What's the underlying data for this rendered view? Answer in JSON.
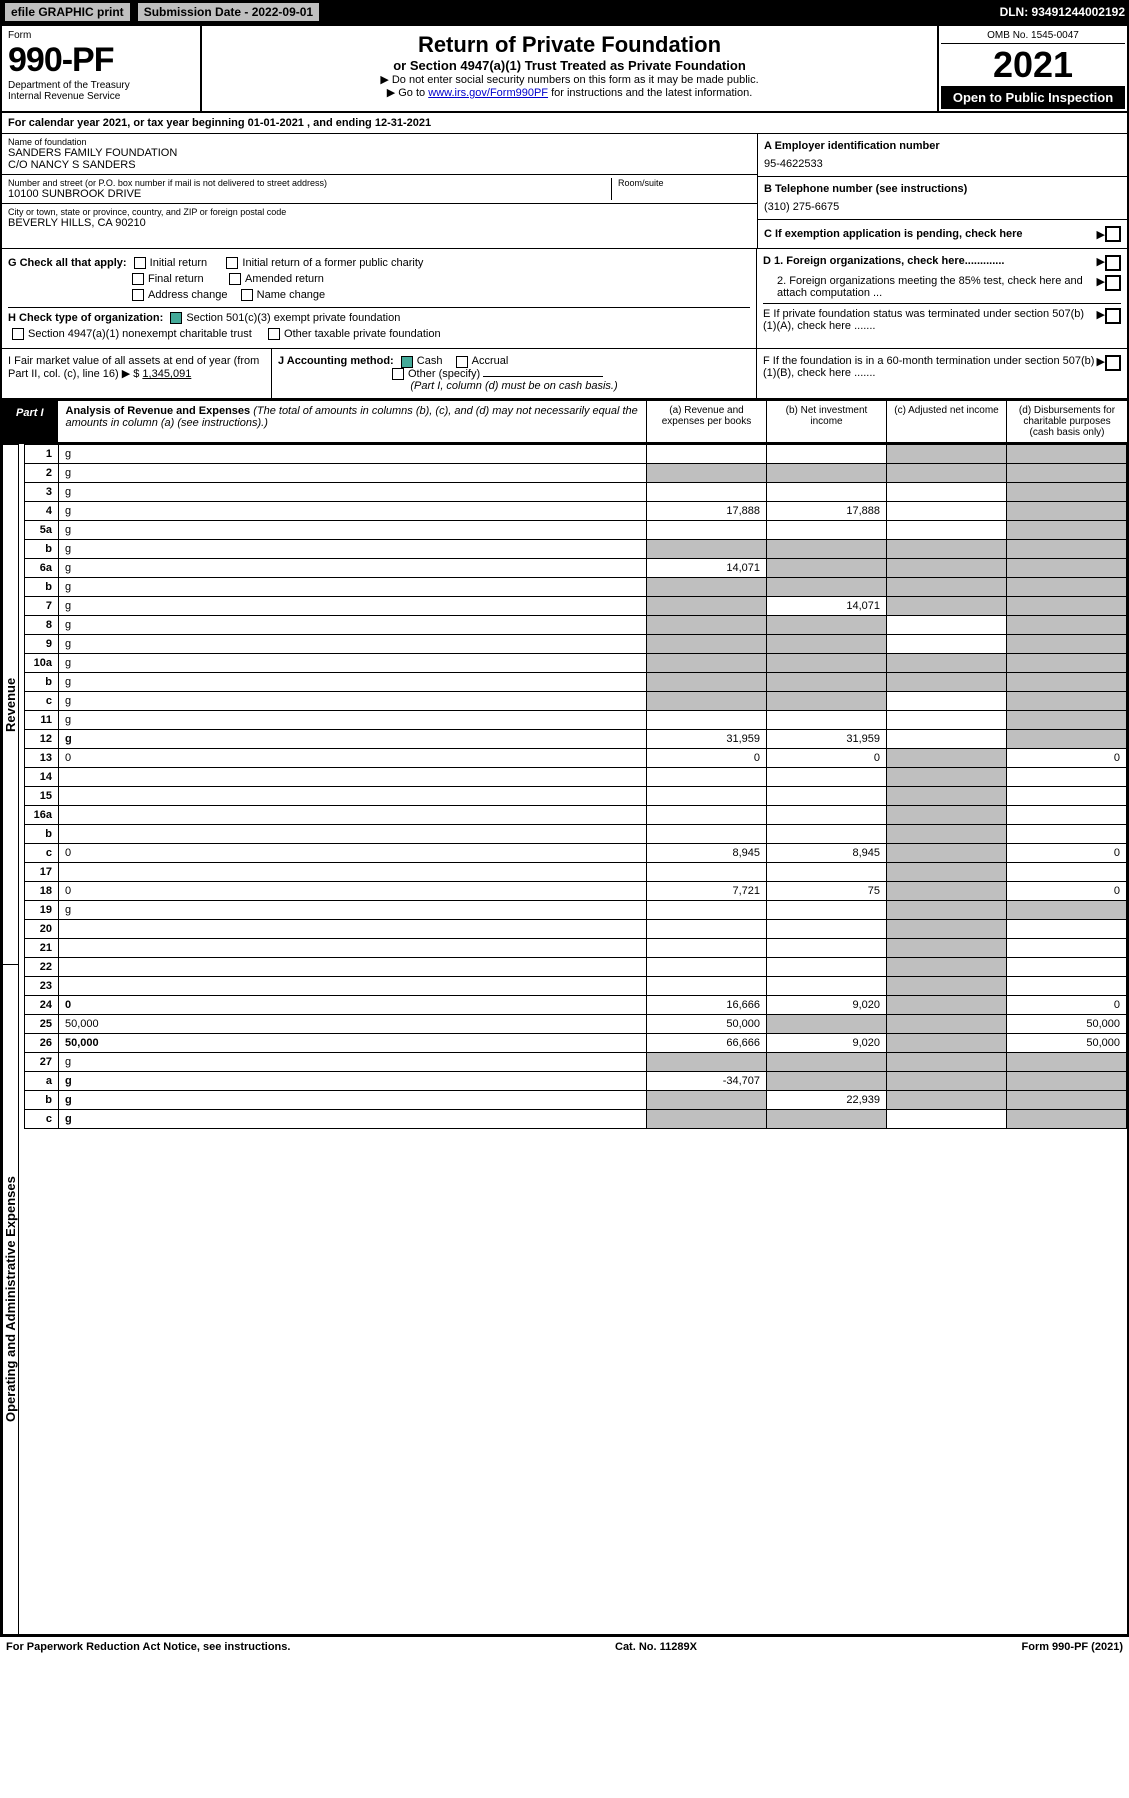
{
  "topbar": {
    "efile": "efile GRAPHIC print",
    "submission_label": "Submission Date - 2022-09-01",
    "dln": "DLN: 93491244002192"
  },
  "header": {
    "form_word": "Form",
    "form_number": "990-PF",
    "dept": "Department of the Treasury",
    "irs": "Internal Revenue Service",
    "title": "Return of Private Foundation",
    "subtitle": "or Section 4947(a)(1) Trust Treated as Private Foundation",
    "note1": "▶ Do not enter social security numbers on this form as it may be made public.",
    "note2_pre": "▶ Go to ",
    "note2_link": "www.irs.gov/Form990PF",
    "note2_post": " for instructions and the latest information.",
    "omb": "OMB No. 1545-0047",
    "year": "2021",
    "open": "Open to Public Inspection"
  },
  "calendar": {
    "pre": "For calendar year 2021, or tax year beginning ",
    "begin": "01-01-2021",
    "mid": " , and ending ",
    "end": "12-31-2021"
  },
  "name": {
    "lbl": "Name of foundation",
    "val1": "SANDERS FAMILY FOUNDATION",
    "val2": "C/O NANCY S SANDERS",
    "addr_lbl": "Number and street (or P.O. box number if mail is not delivered to street address)",
    "addr_val": "10100 SUNBROOK DRIVE",
    "room_lbl": "Room/suite",
    "city_lbl": "City or town, state or province, country, and ZIP or foreign postal code",
    "city_val": "BEVERLY HILLS, CA  90210"
  },
  "right": {
    "a_lbl": "A Employer identification number",
    "a_val": "95-4622533",
    "b_lbl": "B Telephone number (see instructions)",
    "b_val": "(310) 275-6675",
    "c_lbl": "C If exemption application is pending, check here",
    "d1": "D 1. Foreign organizations, check here.............",
    "d2": "2. Foreign organizations meeting the 85% test, check here and attach computation ...",
    "e": "E  If private foundation status was terminated under section 507(b)(1)(A), check here .......",
    "f": "F  If the foundation is in a 60-month termination under section 507(b)(1)(B), check here .......",
    "arrow": "▶"
  },
  "g": {
    "lead": "G Check all that apply:",
    "o1": "Initial return",
    "o2": "Initial return of a former public charity",
    "o3": "Final return",
    "o4": "Amended return",
    "o5": "Address change",
    "o6": "Name change"
  },
  "h": {
    "lead": "H Check type of organization:",
    "o1": "Section 501(c)(3) exempt private foundation",
    "o2": "Section 4947(a)(1) nonexempt charitable trust",
    "o3": "Other taxable private foundation"
  },
  "i": {
    "lead": "I Fair market value of all assets at end of year (from Part II, col. (c), line 16) ▶ $",
    "val": "1,345,091"
  },
  "j": {
    "lead": "J Accounting method:",
    "cash": "Cash",
    "accrual": "Accrual",
    "other": "Other (specify)",
    "note": "(Part I, column (d) must be on cash basis.)"
  },
  "part1": {
    "tab": "Part I",
    "title_b": "Analysis of Revenue and Expenses",
    "title_i": " (The total of amounts in columns (b), (c), and (d) may not necessarily equal the amounts in column (a) (see instructions).)",
    "col_a": "(a)  Revenue and expenses per books",
    "col_b": "(b)  Net investment income",
    "col_c": "(c)  Adjusted net income",
    "col_d": "(d)  Disbursements for charitable purposes (cash basis only)"
  },
  "side": {
    "rev": "Revenue",
    "opex": "Operating and Administrative Expenses"
  },
  "rows": [
    {
      "n": "1",
      "d": "g",
      "a": "",
      "b": "",
      "c": "g"
    },
    {
      "n": "2",
      "d": "g",
      "a": "g",
      "b": "g",
      "c": "g"
    },
    {
      "n": "3",
      "d": "g",
      "a": "",
      "b": "",
      "c": ""
    },
    {
      "n": "4",
      "d": "g",
      "a": "17,888",
      "b": "17,888",
      "c": ""
    },
    {
      "n": "5a",
      "d": "g",
      "a": "",
      "b": "",
      "c": ""
    },
    {
      "n": "b",
      "d": "g",
      "a": "g",
      "b": "g",
      "c": "g"
    },
    {
      "n": "6a",
      "d": "g",
      "a": "14,071",
      "b": "g",
      "c": "g"
    },
    {
      "n": "b",
      "d": "g",
      "a": "g",
      "b": "g",
      "c": "g"
    },
    {
      "n": "7",
      "d": "g",
      "a": "g",
      "b": "14,071",
      "c": "g"
    },
    {
      "n": "8",
      "d": "g",
      "a": "g",
      "b": "g",
      "c": ""
    },
    {
      "n": "9",
      "d": "g",
      "a": "g",
      "b": "g",
      "c": ""
    },
    {
      "n": "10a",
      "d": "g",
      "a": "g",
      "b": "g",
      "c": "g"
    },
    {
      "n": "b",
      "d": "g",
      "a": "g",
      "b": "g",
      "c": "g"
    },
    {
      "n": "c",
      "d": "g",
      "a": "g",
      "b": "g",
      "c": ""
    },
    {
      "n": "11",
      "d": "g",
      "a": "",
      "b": "",
      "c": ""
    },
    {
      "n": "12",
      "d": "g",
      "a": "31,959",
      "b": "31,959",
      "c": "",
      "bold": true
    },
    {
      "n": "13",
      "d": "0",
      "a": "0",
      "b": "0",
      "c": "g"
    },
    {
      "n": "14",
      "d": "",
      "a": "",
      "b": "",
      "c": "g"
    },
    {
      "n": "15",
      "d": "",
      "a": "",
      "b": "",
      "c": "g"
    },
    {
      "n": "16a",
      "d": "",
      "a": "",
      "b": "",
      "c": "g"
    },
    {
      "n": "b",
      "d": "",
      "a": "",
      "b": "",
      "c": "g"
    },
    {
      "n": "c",
      "d": "0",
      "a": "8,945",
      "b": "8,945",
      "c": "g"
    },
    {
      "n": "17",
      "d": "",
      "a": "",
      "b": "",
      "c": "g"
    },
    {
      "n": "18",
      "d": "0",
      "a": "7,721",
      "b": "75",
      "c": "g"
    },
    {
      "n": "19",
      "d": "g",
      "a": "",
      "b": "",
      "c": "g"
    },
    {
      "n": "20",
      "d": "",
      "a": "",
      "b": "",
      "c": "g"
    },
    {
      "n": "21",
      "d": "",
      "a": "",
      "b": "",
      "c": "g"
    },
    {
      "n": "22",
      "d": "",
      "a": "",
      "b": "",
      "c": "g"
    },
    {
      "n": "23",
      "d": "",
      "a": "",
      "b": "",
      "c": "g"
    },
    {
      "n": "24",
      "d": "0",
      "a": "16,666",
      "b": "9,020",
      "c": "g",
      "bold": true
    },
    {
      "n": "25",
      "d": "50,000",
      "a": "50,000",
      "b": "g",
      "c": "g"
    },
    {
      "n": "26",
      "d": "50,000",
      "a": "66,666",
      "b": "9,020",
      "c": "g",
      "bold": true
    },
    {
      "n": "27",
      "d": "g",
      "a": "g",
      "b": "g",
      "c": "g"
    },
    {
      "n": "a",
      "d": "g",
      "a": "-34,707",
      "b": "g",
      "c": "g",
      "bold": true
    },
    {
      "n": "b",
      "d": "g",
      "a": "g",
      "b": "22,939",
      "c": "g",
      "bold": true
    },
    {
      "n": "c",
      "d": "g",
      "a": "g",
      "b": "g",
      "c": "",
      "bold": true
    }
  ],
  "footer": {
    "left": "For Paperwork Reduction Act Notice, see instructions.",
    "mid": "Cat. No. 11289X",
    "right": "Form 990-PF (2021)"
  },
  "colors": {
    "black": "#000000",
    "gray": "#bfbfbf",
    "link": "#0000cc",
    "green": "#44aa88"
  }
}
